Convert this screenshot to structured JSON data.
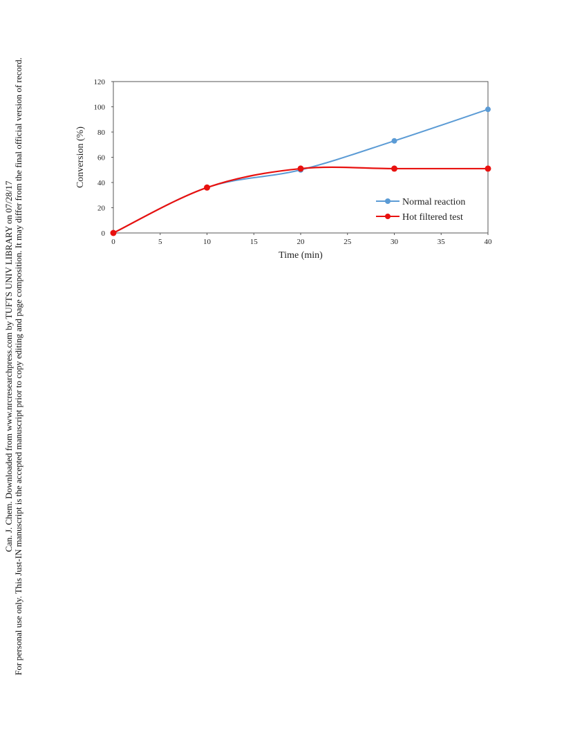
{
  "watermark": {
    "line1": "Can. J. Chem. Downloaded from www.nrcresearchpress.com by TUFTS UNIV LIBRARY on 07/28/17",
    "line2": "For personal use only. This Just-IN manuscript is the accepted manuscript prior to copy editing and page composition. It may differ from the final official version of record."
  },
  "chart_data": {
    "type": "line",
    "title": "",
    "xlabel": "Time (min)",
    "ylabel": "Conversion (%)",
    "xlim": [
      0,
      40
    ],
    "ylim": [
      0,
      120
    ],
    "xticks": [
      0,
      5,
      10,
      15,
      20,
      25,
      30,
      35,
      40
    ],
    "yticks": [
      0,
      20,
      40,
      60,
      80,
      100,
      120
    ],
    "grid": false,
    "legend_position": "lower-right",
    "series": [
      {
        "name": "Normal reaction",
        "color": "#5b9bd5",
        "x": [
          0,
          10,
          20,
          30,
          40
        ],
        "y": [
          0,
          36,
          50,
          73,
          98
        ]
      },
      {
        "name": "Hot filtered test",
        "color": "#e8110f",
        "x": [
          0,
          10,
          20,
          30,
          40
        ],
        "y": [
          0,
          36,
          51,
          51,
          51
        ]
      }
    ]
  }
}
